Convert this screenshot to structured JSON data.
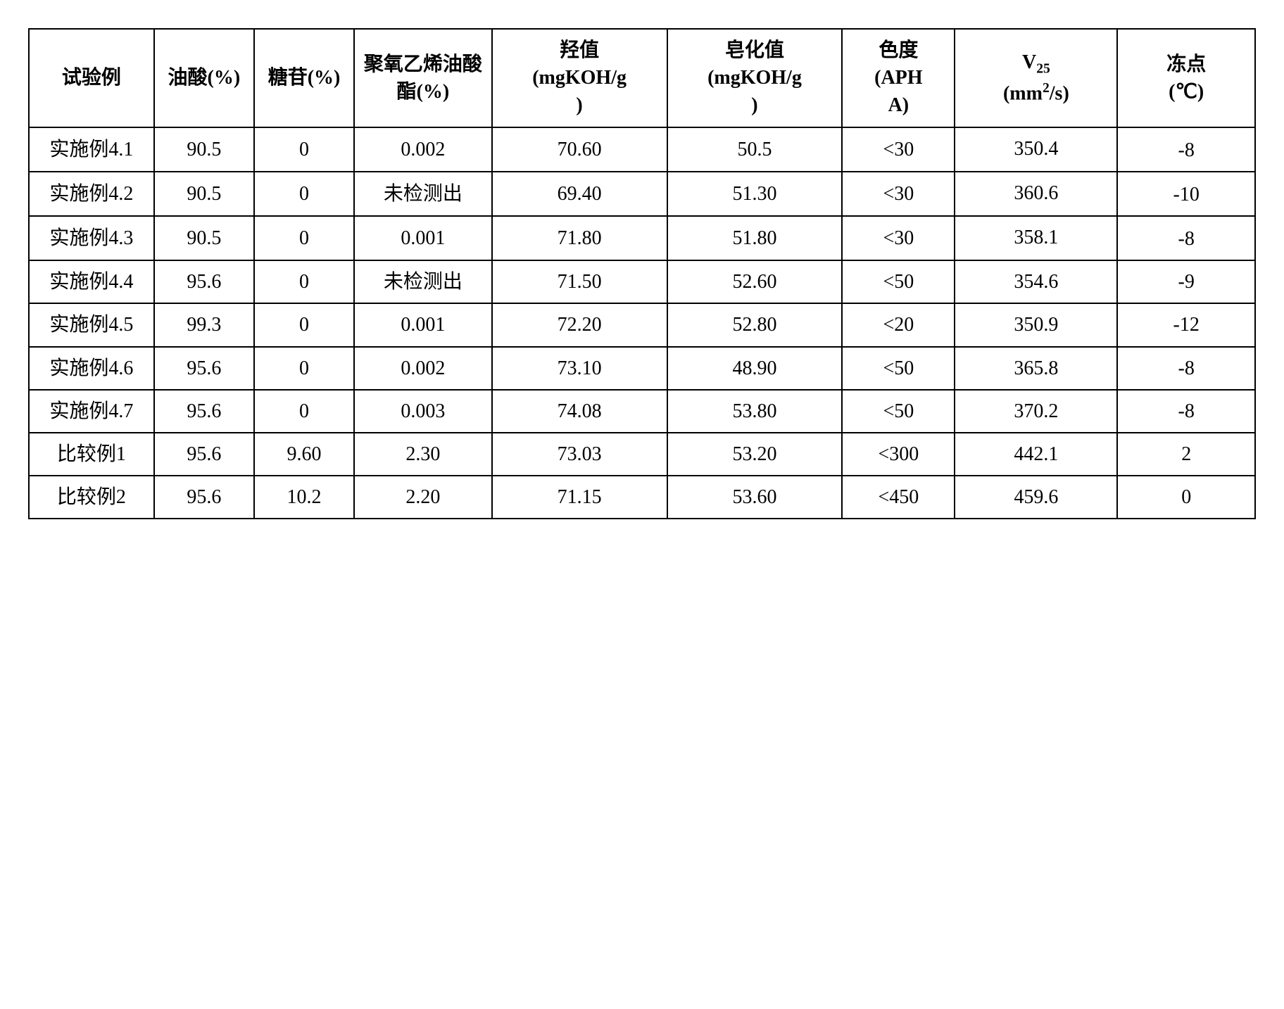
{
  "table": {
    "columns": [
      {
        "label": "试验例"
      },
      {
        "label": "油酸(%)"
      },
      {
        "label": "糖苷(%)"
      },
      {
        "label": "聚氧乙烯油酸酯(%)"
      },
      {
        "label_l1": "羟值",
        "label_l2": "(mgKOH/g",
        "label_l3": ")"
      },
      {
        "label_l1": "皂化值",
        "label_l2": "(mgKOH/g",
        "label_l3": ")"
      },
      {
        "label_l1": "色度",
        "label_l2": "(APH",
        "label_l3": "A)"
      },
      {
        "label_sym": "V",
        "label_sub": "25",
        "label_unit_pre": "(mm",
        "label_sup": "2",
        "label_unit_post": "/s)"
      },
      {
        "label_l1": "冻点",
        "label_l2": "(℃)"
      }
    ],
    "rows": [
      {
        "r": [
          "实施例4.1",
          "90.5",
          "0",
          "0.002",
          "70.60",
          "50.5",
          "<30",
          "350.4",
          "-8"
        ],
        "v8align": "bottom",
        "v9align": "top"
      },
      {
        "r": [
          "实施例4.2",
          "90.5",
          "0",
          "未检测出",
          "69.40",
          "51.30",
          "<30",
          "360.6",
          "-10"
        ],
        "v8align": "bottom",
        "v9align": "top"
      },
      {
        "r": [
          "实施例4.3",
          "90.5",
          "0",
          "0.001",
          "71.80",
          "51.80",
          "<30",
          "358.1",
          "-8"
        ],
        "v8align": "bottom",
        "v9align": "top"
      },
      {
        "r": [
          "实施例4.4",
          "95.6",
          "0",
          "未检测出",
          "71.50",
          "52.60",
          "<50",
          "354.6",
          "-9"
        ],
        "v8align": "middle",
        "v9align": "middle"
      },
      {
        "r": [
          "实施例4.5",
          "99.3",
          "0",
          "0.001",
          "72.20",
          "52.80",
          "<20",
          "350.9",
          "-12"
        ],
        "v8align": "middle",
        "v9align": "middle"
      },
      {
        "r": [
          "实施例4.6",
          "95.6",
          "0",
          "0.002",
          "73.10",
          "48.90",
          "<50",
          "365.8",
          "-8"
        ],
        "v8align": "middle",
        "v9align": "middle"
      },
      {
        "r": [
          "实施例4.7",
          "95.6",
          "0",
          "0.003",
          "74.08",
          "53.80",
          "<50",
          "370.2",
          "-8"
        ],
        "v8align": "middle",
        "v9align": "middle"
      },
      {
        "r": [
          "比较例1",
          "95.6",
          "9.60",
          "2.30",
          "73.03",
          "53.20",
          "<300",
          "442.1",
          "2"
        ],
        "v8align": "middle",
        "v9align": "middle"
      },
      {
        "r": [
          "比较例2",
          "95.6",
          "10.2",
          "2.20",
          "71.15",
          "53.60",
          "<450",
          "459.6",
          "0"
        ],
        "v8align": "middle",
        "v9align": "middle"
      }
    ]
  }
}
